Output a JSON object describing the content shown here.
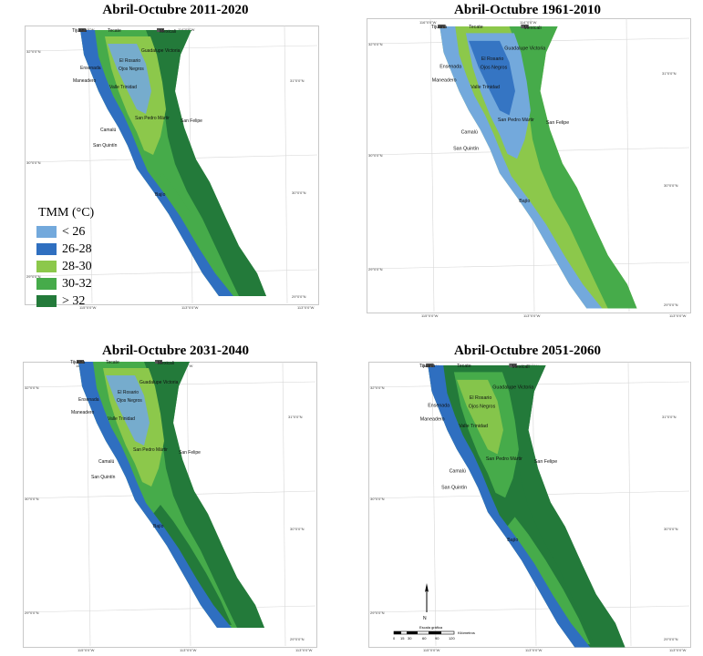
{
  "colors": {
    "lt26": "#73a9dc",
    "c2628": "#2f6fc0",
    "c2830": "#8cc84b",
    "c3032": "#46ab4a",
    "gt32": "#237a3a"
  },
  "panels": [
    {
      "title": "Abril-Octubre 2011-2020",
      "dominant": "c3032"
    },
    {
      "title": "Abril-Octubre 1961-2010",
      "dominant": "lt26"
    },
    {
      "title": "Abril-Octubre 2031-2040",
      "dominant": "c3032"
    },
    {
      "title": "Abril-Octubre 2051-2060",
      "dominant": "gt32"
    }
  ],
  "legend": {
    "title": "TMM (°C)",
    "items": [
      {
        "label": "< 26",
        "color": "#73a9dc"
      },
      {
        "label": "26-28",
        "color": "#2f6fc0"
      },
      {
        "label": "28-30",
        "color": "#8cc84b"
      },
      {
        "label": "30-32",
        "color": "#46ab4a"
      },
      {
        "label": "> 32",
        "color": "#237a3a"
      }
    ]
  },
  "cities": {
    "tijuana": "Tijuana",
    "tecate": "Tecate",
    "mexicali": "Mexicali",
    "guadalupe": "Guadalupe Victoria",
    "ensenada": "Ensenada",
    "maneadero": "Maneadero",
    "rosario": "El Rosario",
    "ojos": "Ojos Negros",
    "trinidad": "Valle Trinidad",
    "sanpedro": "San Pedro Mártir",
    "sanfelipe": "San Felipe",
    "camalu": "Camalú",
    "sanquintin": "San Quintín",
    "bajio": "Bajío"
  },
  "graticule": {
    "lon1": "116°0'0\"W",
    "lon2": "115°0'0\"W",
    "lon3": "114°0'0\"W",
    "lon4": "113°0'0\"W",
    "lat1": "32°0'0\"N",
    "lat2": "31°0'0\"N",
    "lat3": "30°0'0\"N",
    "lat4": "29°0'0\"N"
  },
  "scalebar": {
    "title": "Escala gráfica",
    "ticks": [
      "0",
      "15",
      "30",
      "60",
      "90",
      "120"
    ],
    "unit": "Kilómetros",
    "north": "N"
  }
}
